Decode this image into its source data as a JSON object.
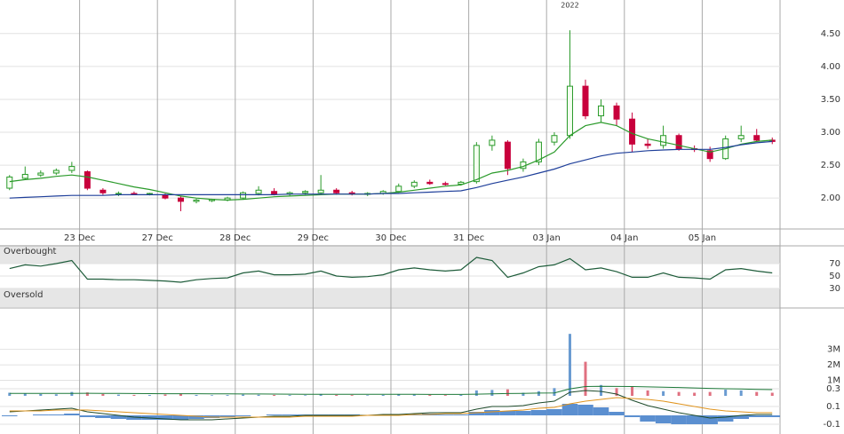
{
  "chart_data": [
    {
      "type": "candlestick",
      "annotation": "2022",
      "categories": [
        null,
        null,
        null,
        null,
        null,
        "23 Dec",
        null,
        null,
        null,
        null,
        "27 Dec",
        null,
        null,
        null,
        null,
        "28 Dec",
        null,
        null,
        null,
        null,
        "29 Dec",
        null,
        null,
        null,
        null,
        "30 Dec",
        null,
        null,
        null,
        null,
        "31 Dec",
        null,
        null,
        null,
        null,
        "03 Jan",
        null,
        null,
        null,
        null,
        "04 Jan",
        null,
        null,
        null,
        null,
        "05 Jan",
        null,
        null,
        null,
        null
      ],
      "open": [
        2.15,
        2.3,
        2.35,
        2.38,
        2.42,
        2.4,
        2.12,
        2.06,
        2.07,
        2.06,
        2.05,
        2.0,
        1.95,
        1.96,
        1.97,
        2.0,
        2.07,
        2.1,
        2.06,
        2.08,
        2.08,
        2.12,
        2.08,
        2.06,
        2.07,
        2.1,
        2.18,
        2.24,
        2.22,
        2.21,
        2.25,
        2.8,
        2.85,
        2.45,
        2.55,
        2.85,
        2.95,
        3.7,
        3.25,
        3.4,
        3.2,
        2.82,
        2.8,
        2.95,
        2.75,
        2.72,
        2.6,
        2.9,
        2.95,
        2.88
      ],
      "high": [
        2.35,
        2.48,
        2.42,
        2.45,
        2.55,
        2.42,
        2.15,
        2.1,
        2.1,
        2.08,
        2.07,
        2.03,
        1.99,
        1.99,
        2.02,
        2.1,
        2.18,
        2.15,
        2.1,
        2.12,
        2.35,
        2.15,
        2.11,
        2.09,
        2.12,
        2.22,
        2.27,
        2.28,
        2.25,
        2.26,
        2.85,
        2.95,
        2.88,
        2.6,
        2.9,
        3.0,
        4.55,
        3.8,
        3.5,
        3.45,
        3.3,
        2.9,
        3.1,
        2.98,
        2.8,
        2.78,
        2.95,
        3.1,
        3.05,
        2.92
      ],
      "low": [
        2.12,
        2.28,
        2.32,
        2.35,
        2.38,
        2.12,
        2.05,
        2.03,
        2.05,
        2.04,
        1.98,
        1.8,
        1.92,
        1.94,
        1.95,
        1.98,
        2.04,
        2.04,
        2.03,
        2.05,
        2.06,
        2.05,
        2.04,
        2.03,
        2.05,
        2.08,
        2.15,
        2.2,
        2.19,
        2.19,
        2.22,
        2.72,
        2.35,
        2.4,
        2.5,
        2.8,
        2.9,
        3.2,
        3.15,
        3.1,
        2.7,
        2.75,
        2.75,
        2.72,
        2.7,
        2.55,
        2.58,
        2.85,
        2.85,
        2.82
      ],
      "close": [
        2.32,
        2.36,
        2.38,
        2.42,
        2.48,
        2.15,
        2.08,
        2.07,
        2.06,
        2.07,
        2.0,
        1.95,
        1.97,
        1.98,
        2.0,
        2.08,
        2.12,
        2.06,
        2.08,
        2.1,
        2.12,
        2.08,
        2.06,
        2.07,
        2.1,
        2.18,
        2.24,
        2.22,
        2.21,
        2.24,
        2.8,
        2.88,
        2.45,
        2.55,
        2.85,
        2.95,
        3.7,
        3.25,
        3.4,
        3.2,
        2.82,
        2.8,
        2.95,
        2.75,
        2.74,
        2.6,
        2.9,
        2.95,
        2.88,
        2.86
      ],
      "series": [
        {
          "color": "#2a9a2a",
          "values": [
            2.25,
            2.28,
            2.3,
            2.33,
            2.35,
            2.32,
            2.27,
            2.22,
            2.17,
            2.13,
            2.08,
            2.03,
            2.0,
            1.98,
            1.97,
            1.98,
            2.0,
            2.02,
            2.03,
            2.04,
            2.05,
            2.06,
            2.06,
            2.06,
            2.07,
            2.09,
            2.12,
            2.15,
            2.18,
            2.2,
            2.28,
            2.38,
            2.42,
            2.48,
            2.58,
            2.7,
            2.95,
            3.1,
            3.15,
            3.1,
            2.98,
            2.9,
            2.85,
            2.8,
            2.75,
            2.7,
            2.75,
            2.82,
            2.86,
            2.88
          ]
        },
        {
          "color": "#1f3f9a",
          "values": [
            2.0,
            2.01,
            2.02,
            2.03,
            2.04,
            2.04,
            2.04,
            2.05,
            2.05,
            2.05,
            2.05,
            2.05,
            2.05,
            2.05,
            2.05,
            2.05,
            2.05,
            2.05,
            2.06,
            2.06,
            2.06,
            2.06,
            2.06,
            2.06,
            2.07,
            2.07,
            2.08,
            2.09,
            2.1,
            2.11,
            2.16,
            2.22,
            2.27,
            2.32,
            2.38,
            2.44,
            2.52,
            2.58,
            2.64,
            2.68,
            2.7,
            2.72,
            2.73,
            2.74,
            2.74,
            2.74,
            2.77,
            2.81,
            2.84,
            2.86
          ]
        }
      ],
      "up_color": "#2a9a2a",
      "down_color": "#c8003c",
      "ylim": [
        1.53,
        5.01
      ],
      "yticks": [
        {
          "value": 2,
          "label": "2.00"
        },
        {
          "value": 2.5,
          "label": "2.50"
        },
        {
          "value": 3,
          "label": "3.00"
        },
        {
          "value": 3.5,
          "label": "3.50"
        },
        {
          "value": 4,
          "label": "4.00"
        },
        {
          "value": 4.5,
          "label": "4.50"
        }
      ],
      "grid": true
    },
    {
      "type": "line",
      "series": [
        {
          "color": "#1e5c3a",
          "values": [
            62,
            68,
            66,
            70,
            75,
            45,
            45,
            44,
            44,
            43,
            42,
            40,
            44,
            46,
            47,
            55,
            58,
            52,
            52,
            53,
            58,
            50,
            48,
            49,
            52,
            60,
            63,
            60,
            58,
            60,
            80,
            75,
            48,
            55,
            65,
            68,
            78,
            60,
            63,
            57,
            48,
            48,
            55,
            48,
            47,
            45,
            60,
            62,
            58,
            55
          ]
        }
      ],
      "bands": [
        {
          "label": "Overbought",
          "range": [
            70,
            100
          ]
        },
        {
          "label": "Oversold",
          "range": [
            0,
            30
          ]
        }
      ],
      "ylim": [
        0,
        100
      ],
      "yticks": [
        30,
        50,
        70
      ]
    },
    {
      "type": "bar",
      "values": [
        200000,
        150000,
        120000,
        100000,
        250000,
        220000,
        120000,
        80000,
        60000,
        50000,
        90000,
        150000,
        60000,
        40000,
        50000,
        80000,
        70000,
        60000,
        50000,
        40000,
        120000,
        60000,
        50000,
        40000,
        60000,
        100000,
        80000,
        60000,
        50000,
        60000,
        350000,
        380000,
        420000,
        200000,
        300000,
        500000,
        4000000,
        2200000,
        700000,
        500000,
        600000,
        350000,
        300000,
        250000,
        200000,
        250000,
        400000,
        350000,
        250000,
        200000
      ],
      "color": "#6a9bd1",
      "down_color": "#e07080",
      "series": [
        {
          "color": "#1e7a3a",
          "values": [
            160000,
            160000,
            160000,
            155000,
            160000,
            165000,
            160000,
            155000,
            150000,
            145000,
            140000,
            140000,
            135000,
            130000,
            125000,
            120000,
            118000,
            115000,
            110000,
            105000,
            105000,
            102000,
            100000,
            98000,
            96000,
            96000,
            95000,
            94000,
            93000,
            92000,
            110000,
            130000,
            150000,
            160000,
            175000,
            190000,
            450000,
            600000,
            620000,
            610000,
            600000,
            580000,
            560000,
            540000,
            510000,
            480000,
            460000,
            440000,
            420000,
            400000
          ]
        }
      ],
      "ylim": [
        0,
        5500000
      ],
      "yticks": [
        {
          "value": 1000000,
          "label": "1M"
        },
        {
          "value": 2000000,
          "label": "2M"
        },
        {
          "value": 3000000,
          "label": "3M"
        }
      ]
    },
    {
      "type": "macd",
      "values": [
        -0.01,
        0,
        0.01,
        0.01,
        0.02,
        -0.02,
        -0.03,
        -0.04,
        -0.05,
        -0.05,
        -0.05,
        -0.05,
        -0.04,
        -0.03,
        -0.02,
        -0.01,
        0,
        0.01,
        0.01,
        0.01,
        0.01,
        0.01,
        0.01,
        0,
        0.01,
        0.01,
        0.01,
        0.02,
        0.01,
        0.01,
        0.04,
        0.06,
        0.05,
        0.05,
        0.06,
        0.07,
        0.13,
        0.12,
        0.09,
        0.04,
        -0.02,
        -0.07,
        -0.09,
        -0.1,
        -0.1,
        -0.1,
        -0.07,
        -0.04,
        -0.02,
        -0.02
      ],
      "color": "#5b8fd0",
      "series": [
        {
          "color": "#1e4a2a",
          "values": [
            0.04,
            0.05,
            0.06,
            0.07,
            0.08,
            0.04,
            0.02,
            0.0,
            -0.02,
            -0.03,
            -0.04,
            -0.05,
            -0.05,
            -0.05,
            -0.04,
            -0.03,
            -0.02,
            -0.01,
            -0.01,
            0.0,
            0.0,
            0.0,
            0.0,
            0.0,
            0.01,
            0.01,
            0.02,
            0.03,
            0.03,
            0.03,
            0.07,
            0.1,
            0.1,
            0.11,
            0.14,
            0.16,
            0.26,
            0.28,
            0.27,
            0.24,
            0.17,
            0.11,
            0.07,
            0.03,
            0.0,
            -0.03,
            -0.02,
            0.0,
            0.01,
            0.01
          ]
        },
        {
          "color": "#e0941e",
          "values": [
            0.05,
            0.05,
            0.05,
            0.06,
            0.06,
            0.06,
            0.05,
            0.04,
            0.03,
            0.02,
            0.01,
            0.0,
            -0.01,
            -0.02,
            -0.02,
            -0.02,
            -0.02,
            -0.02,
            -0.02,
            -0.01,
            -0.01,
            -0.01,
            -0.01,
            0.0,
            0.0,
            0.0,
            0.01,
            0.01,
            0.02,
            0.02,
            0.03,
            0.04,
            0.05,
            0.06,
            0.08,
            0.09,
            0.13,
            0.16,
            0.18,
            0.2,
            0.19,
            0.18,
            0.16,
            0.13,
            0.1,
            0.07,
            0.05,
            0.04,
            0.03,
            0.03
          ]
        }
      ],
      "ylim": [
        -0.21,
        0.36
      ],
      "yticks": [
        -0.1,
        0.1,
        0.3
      ]
    }
  ]
}
